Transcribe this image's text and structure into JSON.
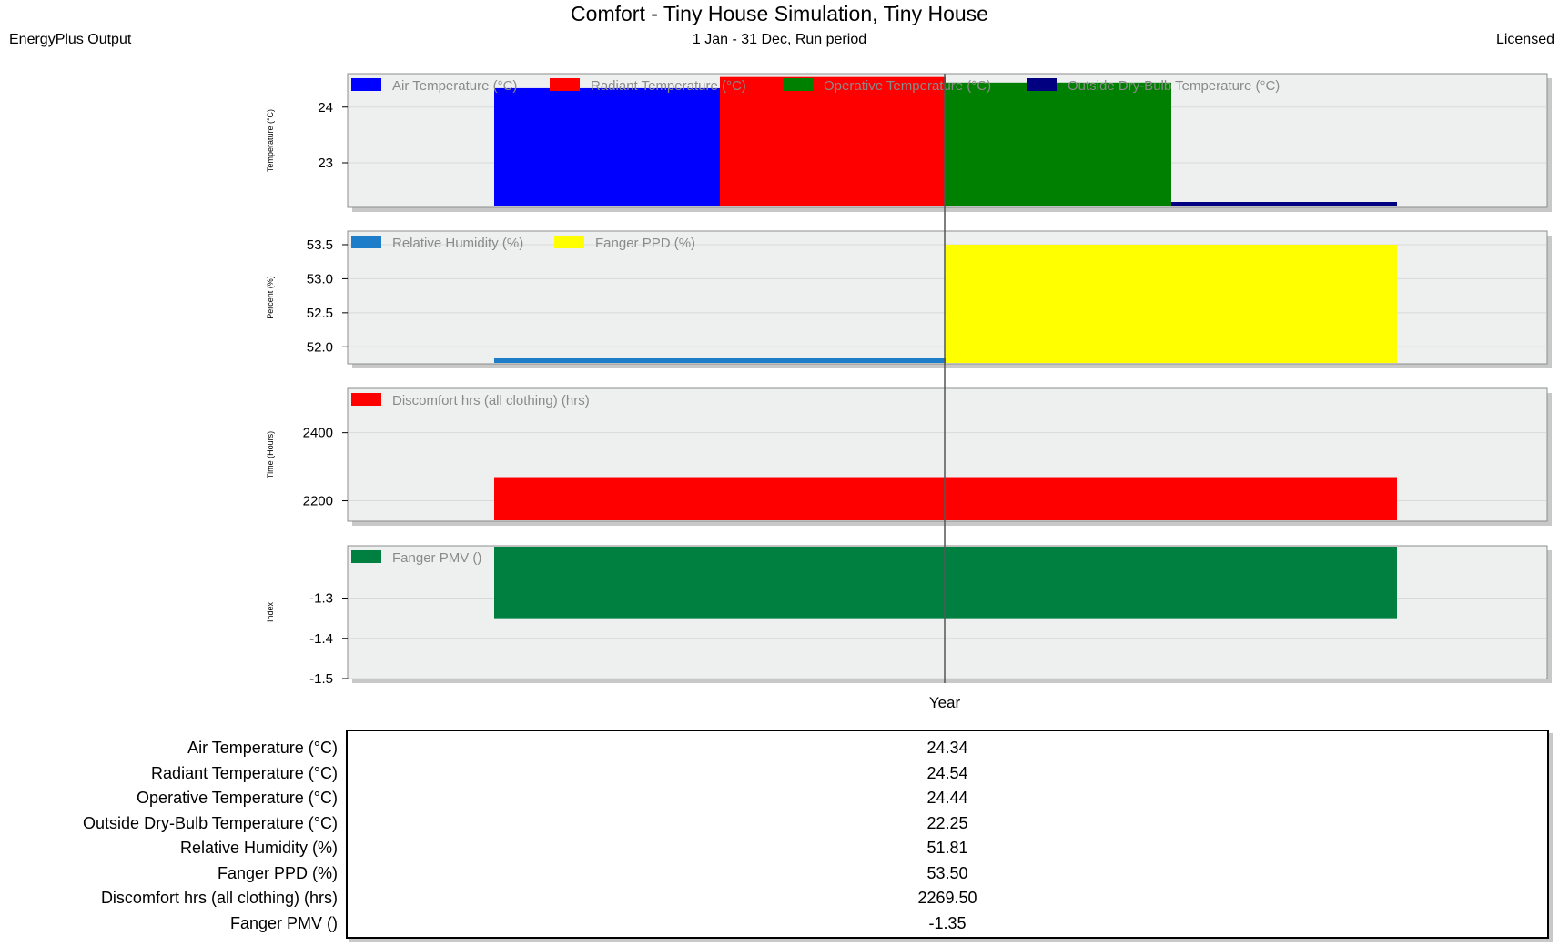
{
  "header": {
    "title": "Comfort - Tiny House Simulation, Tiny House",
    "subtitle": "1 Jan - 31 Dec, Run period",
    "source": "EnergyPlus Output",
    "license": "Licensed"
  },
  "chart_data": [
    {
      "type": "bar",
      "categories": [
        "Year"
      ],
      "ylabel": "Temperature (°C)",
      "ylim": [
        22.2,
        24.6
      ],
      "yticks": [
        "24",
        "23"
      ],
      "grid": true,
      "legend_position": "top-left",
      "series": [
        {
          "name": "Air Temperature (°C)",
          "values": [
            24.34
          ],
          "color": "#0000ff"
        },
        {
          "name": "Radiant Temperature (°C)",
          "values": [
            24.54
          ],
          "color": "#ff0000"
        },
        {
          "name": "Operative Temperature (°C)",
          "values": [
            24.44
          ],
          "color": "#008000"
        },
        {
          "name": "Outside Dry-Bulb Temperature (°C)",
          "values": [
            22.25
          ],
          "color": "#000080"
        }
      ]
    },
    {
      "type": "bar",
      "categories": [
        "Year"
      ],
      "ylabel": "Percent (%)",
      "ylim": [
        51.75,
        53.7
      ],
      "yticks": [
        "53.5",
        "53.0",
        "52.5",
        "52.0"
      ],
      "grid": true,
      "legend_position": "top-left",
      "series": [
        {
          "name": "Relative Humidity (%)",
          "values": [
            51.81
          ],
          "color": "#1e7dc8"
        },
        {
          "name": "Fanger PPD (%)",
          "values": [
            53.5
          ],
          "color": "#ffff00"
        }
      ]
    },
    {
      "type": "bar",
      "categories": [
        "Year"
      ],
      "ylabel": "Time (Hours)",
      "ylim": [
        2140,
        2530
      ],
      "yticks": [
        "2400",
        "2200"
      ],
      "grid": true,
      "legend_position": "top-left",
      "series": [
        {
          "name": "Discomfort hrs (all clothing) (hrs)",
          "values": [
            2269.5
          ],
          "color": "#ff0000"
        }
      ]
    },
    {
      "type": "bar",
      "categories": [
        "Year"
      ],
      "ylabel": "Index",
      "ylim": [
        -1.5,
        -1.17
      ],
      "yticks": [
        "-1.3",
        "-1.4",
        "-1.5"
      ],
      "grid": true,
      "legend_position": "top-left",
      "series": [
        {
          "name": "Fanger PMV ()",
          "values": [
            -1.35
          ],
          "color": "#008040"
        }
      ]
    }
  ],
  "xlabel": "Year",
  "summary": [
    {
      "label": "Air Temperature (°C)",
      "value": "24.34"
    },
    {
      "label": "Radiant Temperature (°C)",
      "value": "24.54"
    },
    {
      "label": "Operative Temperature (°C)",
      "value": "24.44"
    },
    {
      "label": "Outside Dry-Bulb Temperature (°C)",
      "value": "22.25"
    },
    {
      "label": "Relative Humidity (%)",
      "value": "51.81"
    },
    {
      "label": "Fanger PPD (%)",
      "value": "53.50"
    },
    {
      "label": "Discomfort hrs (all clothing) (hrs)",
      "value": "2269.50"
    },
    {
      "label": "Fanger PMV ()",
      "value": "-1.35"
    }
  ]
}
